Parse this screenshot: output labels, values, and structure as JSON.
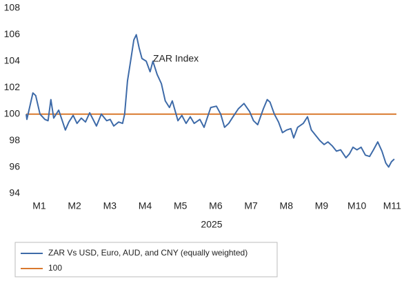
{
  "chart_data": {
    "type": "line",
    "annotation": "ZAR Index",
    "xlabel": "2025",
    "xlim": [
      0.63,
      11.12
    ],
    "xticks": [
      {
        "value": 1,
        "label": "M1"
      },
      {
        "value": 2,
        "label": "M2"
      },
      {
        "value": 3,
        "label": "M3"
      },
      {
        "value": 4,
        "label": "M4"
      },
      {
        "value": 5,
        "label": "M5"
      },
      {
        "value": 6,
        "label": "M6"
      },
      {
        "value": 7,
        "label": "M7"
      },
      {
        "value": 8,
        "label": "M8"
      },
      {
        "value": 9,
        "label": "M9"
      },
      {
        "value": 10,
        "label": "M10"
      },
      {
        "value": 11,
        "label": "M11"
      }
    ],
    "ylim": [
      94,
      108
    ],
    "yticks": [
      94,
      96,
      98,
      100,
      102,
      104,
      106,
      108
    ],
    "grid": false,
    "legend": "bottom",
    "series": [
      {
        "name": "ZAR Vs USD, Euro, AUD, and CNY (equally weighted)",
        "color": "#3d6aa8",
        "x": [
          0.63,
          0.65,
          0.82,
          0.9,
          1.02,
          1.16,
          1.25,
          1.33,
          1.41,
          1.55,
          1.64,
          1.74,
          1.84,
          1.96,
          2.07,
          2.19,
          2.31,
          2.43,
          2.62,
          2.76,
          2.91,
          3.01,
          3.11,
          3.25,
          3.36,
          3.42,
          3.5,
          3.6,
          3.68,
          3.75,
          3.83,
          3.91,
          4.03,
          4.14,
          4.22,
          4.34,
          4.46,
          4.57,
          4.69,
          4.77,
          4.93,
          5.04,
          5.16,
          5.28,
          5.39,
          5.55,
          5.67,
          5.86,
          6.02,
          6.14,
          6.25,
          6.37,
          6.49,
          6.64,
          6.8,
          6.96,
          7.07,
          7.19,
          7.35,
          7.46,
          7.54,
          7.66,
          7.78,
          7.89,
          8.01,
          8.13,
          8.21,
          8.32,
          8.48,
          8.6,
          8.71,
          8.83,
          8.95,
          9.07,
          9.18,
          9.3,
          9.42,
          9.54,
          9.69,
          9.79,
          9.89,
          10.0,
          10.12,
          10.24,
          10.36,
          10.47,
          10.59,
          10.71,
          10.82,
          10.9,
          10.98,
          11.06
        ],
        "values": [
          100.0,
          99.6,
          101.6,
          101.4,
          100.0,
          99.6,
          99.5,
          101.1,
          99.7,
          100.3,
          99.6,
          98.8,
          99.4,
          99.9,
          99.3,
          99.7,
          99.4,
          100.1,
          99.1,
          100.0,
          99.5,
          99.6,
          99.1,
          99.4,
          99.3,
          100.0,
          102.5,
          104.2,
          105.6,
          106.0,
          105.0,
          104.2,
          104.0,
          103.2,
          104.0,
          103.0,
          102.3,
          101.0,
          100.5,
          101.0,
          99.5,
          99.9,
          99.3,
          99.8,
          99.3,
          99.6,
          99.0,
          100.5,
          100.6,
          100.0,
          99.0,
          99.3,
          99.8,
          100.4,
          100.8,
          100.2,
          99.5,
          99.2,
          100.4,
          101.1,
          100.9,
          100.0,
          99.4,
          98.6,
          98.8,
          98.9,
          98.2,
          99.0,
          99.3,
          99.8,
          98.8,
          98.4,
          98.0,
          97.7,
          97.9,
          97.6,
          97.2,
          97.3,
          96.7,
          97.0,
          97.5,
          97.3,
          97.5,
          96.9,
          96.8,
          97.3,
          97.9,
          97.2,
          96.3,
          96.0,
          96.4,
          96.6
        ]
      },
      {
        "name": "100",
        "color": "#d9782d",
        "x": [
          0.63,
          11.12
        ],
        "values": [
          100,
          100
        ]
      }
    ]
  }
}
